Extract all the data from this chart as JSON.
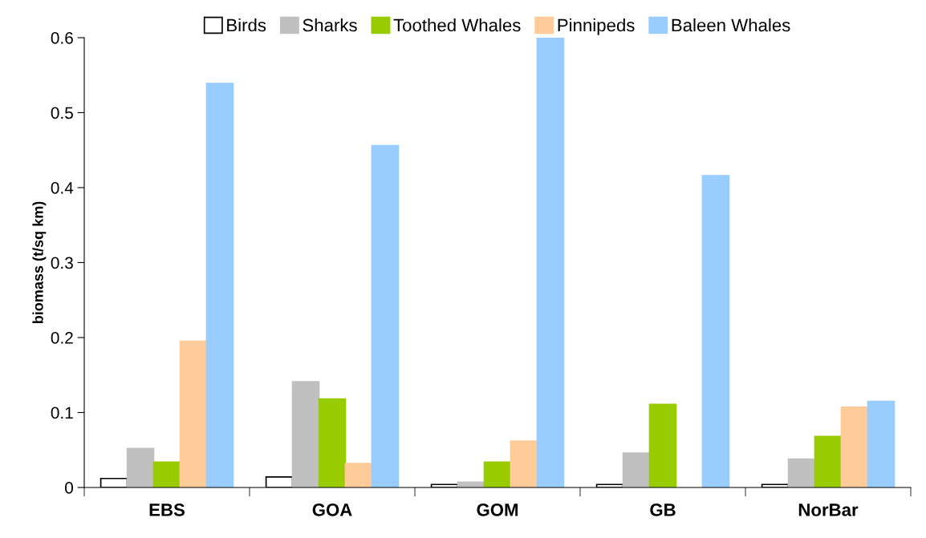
{
  "chart_data": {
    "type": "bar",
    "ylabel": "biomass (t/sq km)",
    "categories": [
      "EBS",
      "GOA",
      "GOM",
      "GB",
      "NorBar"
    ],
    "series": [
      {
        "name": "Birds",
        "color": "#ffffff",
        "values": [
          0.012,
          0.014,
          0.004,
          0.004,
          0.004
        ]
      },
      {
        "name": "Sharks",
        "color": "#c0c0c0",
        "values": [
          0.052,
          0.141,
          0.007,
          0.046,
          0.038
        ]
      },
      {
        "name": "Toothed Whales",
        "color": "#99cc00",
        "values": [
          0.034,
          0.118,
          0.034,
          0.111,
          0.068
        ]
      },
      {
        "name": "Pinnipeds",
        "color": "#ffcc99",
        "values": [
          0.195,
          0.032,
          0.062,
          null,
          0.107
        ]
      },
      {
        "name": "Baleen Whales",
        "color": "#99ccff",
        "values": [
          0.539,
          0.456,
          0.6,
          0.416,
          0.115
        ]
      }
    ],
    "ylim": [
      0,
      0.6
    ],
    "yticks": [
      {
        "value": 0,
        "label": "0"
      },
      0.1,
      0.2,
      0.3,
      0.4,
      0.5,
      0.6
    ],
    "grid": false,
    "legend": "top"
  }
}
